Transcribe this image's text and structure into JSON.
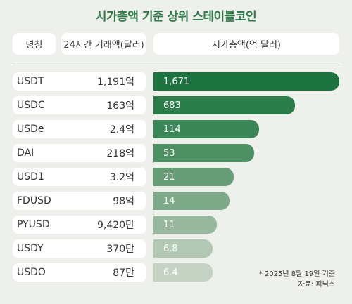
{
  "title": "시가총액 기준 상위 스테이블코인",
  "headers": {
    "name": "명칭",
    "volume": "24시간 거래액(달러)",
    "market_cap": "시가총액(억 달러)"
  },
  "notes": {
    "date": "* 2025년 8월 19일 기준",
    "source": "자료: 피닉스"
  },
  "colors": [
    "#1c7340",
    "#2a7d49",
    "#3b8656",
    "#4e8f63",
    "#669d76",
    "#7faa8a",
    "#98b89f",
    "#b2c7b4",
    "#c4d2c3"
  ],
  "chart_data": {
    "type": "bar",
    "orientation": "horizontal",
    "categories": [
      "USDT",
      "USDC",
      "USDe",
      "DAI",
      "USD1",
      "FDUSD",
      "PYUSD",
      "USDY",
      "USDO"
    ],
    "volume_labels": [
      "1,191억",
      "163억",
      "2.4억",
      "218억",
      "3.2억",
      "98억",
      "9,420만",
      "370만",
      "87만"
    ],
    "values": [
      1671,
      683,
      114,
      53,
      21,
      14,
      11,
      6.8,
      6.4
    ],
    "value_labels": [
      "1,671",
      "683",
      "114",
      "53",
      "21",
      "14",
      "11",
      "6.8",
      "6.4"
    ],
    "bar_levels": [
      1.0,
      0.76,
      0.57,
      0.54,
      0.43,
      0.41,
      0.34,
      0.32,
      0.32
    ]
  }
}
